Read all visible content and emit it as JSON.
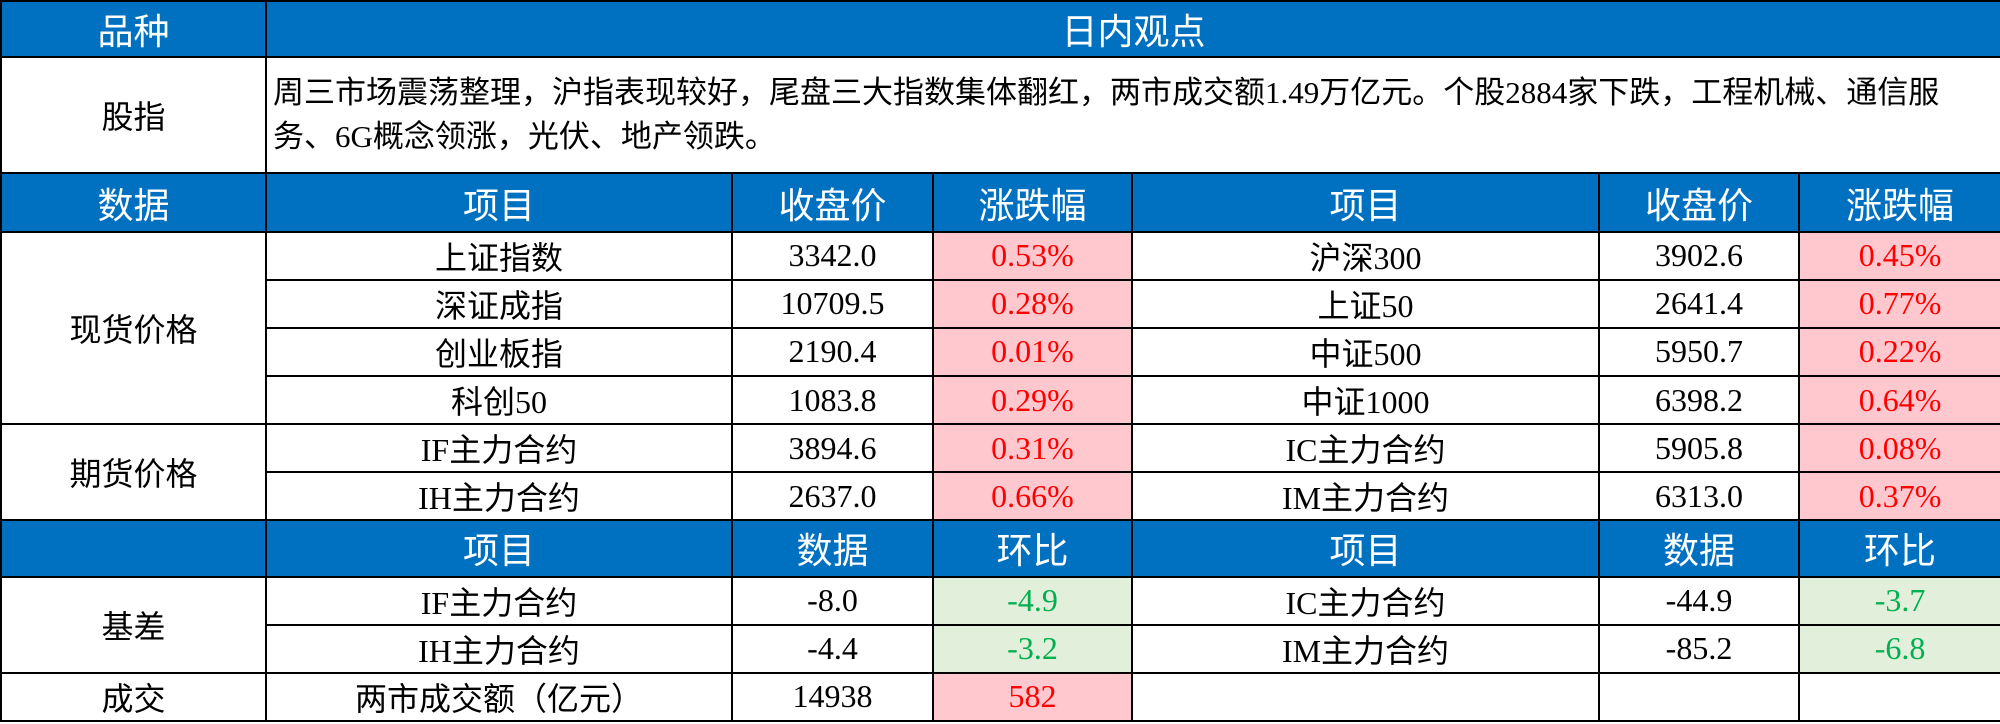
{
  "header": {
    "variety": "品种",
    "view": "日内观点"
  },
  "index": {
    "label": "股指",
    "text": "周三市场震荡整理，沪指表现较好，尾盘三大指数集体翻红，两市成交额1.49万亿元。个股2884家下跌，工程机械、通信服务、6G概念领涨，光伏、地产领跌。"
  },
  "spot_header": [
    "数据",
    "项目",
    "收盘价",
    "涨跌幅",
    "项目",
    "收盘价",
    "涨跌幅"
  ],
  "spot": {
    "label": "现货价格",
    "rows": [
      [
        "上证指数",
        "3342.0",
        "0.53%",
        "沪深300",
        "3902.6",
        "0.45%"
      ],
      [
        "深证成指",
        "10709.5",
        "0.28%",
        "上证50",
        "2641.4",
        "0.77%"
      ],
      [
        "创业板指",
        "2190.4",
        "0.01%",
        "中证500",
        "5950.7",
        "0.22%"
      ],
      [
        "科创50",
        "1083.8",
        "0.29%",
        "中证1000",
        "6398.2",
        "0.64%"
      ]
    ]
  },
  "futures": {
    "label": "期货价格",
    "rows": [
      [
        "IF主力合约",
        "3894.6",
        "0.31%",
        "IC主力合约",
        "5905.8",
        "0.08%"
      ],
      [
        "IH主力合约",
        "2637.0",
        "0.66%",
        "IM主力合约",
        "6313.0",
        "0.37%"
      ]
    ]
  },
  "basis_header": [
    "项目",
    "数据",
    "环比",
    "项目",
    "数据",
    "环比"
  ],
  "basis": {
    "label": "基差",
    "rows": [
      [
        "IF主力合约",
        "-8.0",
        "-4.9",
        "IC主力合约",
        "-44.9",
        "-3.7"
      ],
      [
        "IH主力合约",
        "-4.4",
        "-3.2",
        "IM主力合约",
        "-85.2",
        "-6.8"
      ]
    ]
  },
  "volume": {
    "label": "成交",
    "row": [
      "两市成交额（亿元）",
      "14938",
      "582"
    ]
  }
}
